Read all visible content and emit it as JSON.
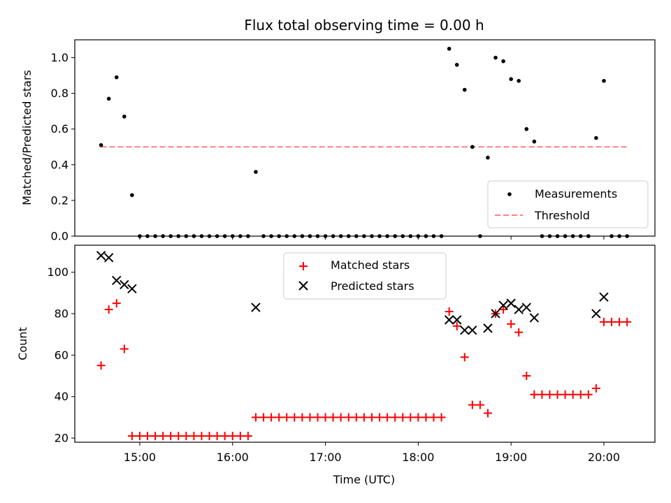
{
  "chart_data": [
    {
      "type": "scatter",
      "title": "Flux total observing time = 0.00 h",
      "xlabel": "",
      "ylabel": "Matched/Predicted stars",
      "xlim": [
        "14:18",
        "20:33"
      ],
      "ylim": [
        0,
        1.1
      ],
      "yticks": [
        0.0,
        0.2,
        0.4,
        0.6,
        0.8,
        1.0
      ],
      "ytick_labels": [
        "0.0",
        "0.2",
        "0.4",
        "0.6",
        "0.8",
        "1.0"
      ],
      "grid": false,
      "legend_position": "lower right",
      "series": [
        {
          "name": "Measurements",
          "marker": "dot",
          "color": "#000000",
          "x": [
            "14:35",
            "14:40",
            "14:45",
            "14:50",
            "14:55",
            "15:00",
            "15:05",
            "15:10",
            "15:15",
            "15:20",
            "15:25",
            "15:30",
            "15:35",
            "15:40",
            "15:45",
            "15:50",
            "15:55",
            "16:00",
            "16:05",
            "16:10",
            "16:15",
            "16:20",
            "16:25",
            "16:30",
            "16:35",
            "16:40",
            "16:45",
            "16:50",
            "16:55",
            "17:00",
            "17:05",
            "17:10",
            "17:15",
            "17:20",
            "17:25",
            "17:30",
            "17:35",
            "17:40",
            "17:45",
            "17:50",
            "17:55",
            "18:00",
            "18:05",
            "18:10",
            "18:15",
            "18:20",
            "18:25",
            "18:30",
            "18:35",
            "18:40",
            "18:45",
            "18:50",
            "18:55",
            "19:00",
            "19:05",
            "19:10",
            "19:15",
            "19:20",
            "19:25",
            "19:30",
            "19:35",
            "19:40",
            "19:45",
            "19:50",
            "19:55",
            "20:00",
            "20:05",
            "20:10",
            "20:15"
          ],
          "y": [
            0.51,
            0.77,
            0.89,
            0.67,
            0.23,
            0,
            0,
            0,
            0,
            0,
            0,
            0,
            0,
            0,
            0,
            0,
            0,
            0,
            0,
            0,
            0.36,
            0,
            0,
            0,
            0,
            0,
            0,
            0,
            0,
            0,
            0,
            0,
            0,
            0,
            0,
            0,
            0,
            0,
            0,
            0,
            0,
            0,
            0,
            0,
            0,
            1.05,
            0.96,
            0.82,
            0.5,
            0,
            0.44,
            1.0,
            0.98,
            0.88,
            0.87,
            0.6,
            0.53,
            0,
            0,
            0,
            0,
            0,
            0,
            0,
            0.55,
            0.87,
            0,
            0,
            0
          ]
        },
        {
          "name": "Threshold",
          "marker": "dashed-line",
          "color": "#ff8080",
          "x": [
            "14:35",
            "20:15"
          ],
          "y": [
            0.5,
            0.5
          ]
        }
      ]
    },
    {
      "type": "scatter",
      "title": "",
      "xlabel": "Time (UTC)",
      "ylabel": "Count",
      "xlim": [
        "14:18",
        "20:33"
      ],
      "ylim": [
        18,
        113
      ],
      "xticks": [
        "15:00",
        "16:00",
        "17:00",
        "18:00",
        "19:00",
        "20:00"
      ],
      "yticks": [
        20,
        40,
        60,
        80,
        100
      ],
      "ytick_labels": [
        "20",
        "40",
        "60",
        "80",
        "100"
      ],
      "grid": false,
      "legend_position": "upper center",
      "series": [
        {
          "name": "Matched stars",
          "marker": "plus",
          "color": "#ff0000",
          "x": [
            "14:35",
            "14:40",
            "14:45",
            "14:50",
            "14:55",
            "15:00",
            "15:05",
            "15:10",
            "15:15",
            "15:20",
            "15:25",
            "15:30",
            "15:35",
            "15:40",
            "15:45",
            "15:50",
            "15:55",
            "16:00",
            "16:05",
            "16:10",
            "16:15",
            "16:20",
            "16:25",
            "16:30",
            "16:35",
            "16:40",
            "16:45",
            "16:50",
            "16:55",
            "17:00",
            "17:05",
            "17:10",
            "17:15",
            "17:20",
            "17:25",
            "17:30",
            "17:35",
            "17:40",
            "17:45",
            "17:50",
            "17:55",
            "18:00",
            "18:05",
            "18:10",
            "18:15",
            "18:20",
            "18:25",
            "18:30",
            "18:35",
            "18:40",
            "18:45",
            "18:50",
            "18:55",
            "19:00",
            "19:05",
            "19:10",
            "19:15",
            "19:20",
            "19:25",
            "19:30",
            "19:35",
            "19:40",
            "19:45",
            "19:50",
            "19:55",
            "20:00",
            "20:05",
            "20:10",
            "20:15"
          ],
          "y": [
            55,
            82,
            85,
            63,
            21,
            21,
            21,
            21,
            21,
            21,
            21,
            21,
            21,
            21,
            21,
            21,
            21,
            21,
            21,
            21,
            30,
            30,
            30,
            30,
            30,
            30,
            30,
            30,
            30,
            30,
            30,
            30,
            30,
            30,
            30,
            30,
            30,
            30,
            30,
            30,
            30,
            30,
            30,
            30,
            30,
            81,
            74,
            59,
            36,
            36,
            32,
            80,
            82,
            75,
            71,
            50,
            41,
            41,
            41,
            41,
            41,
            41,
            41,
            41,
            44,
            76,
            76,
            76,
            76
          ]
        },
        {
          "name": "Predicted stars",
          "marker": "x",
          "color": "#000000",
          "x": [
            "14:35",
            "14:40",
            "14:45",
            "14:50",
            "14:55",
            "16:15",
            "18:20",
            "18:25",
            "18:30",
            "18:35",
            "18:45",
            "18:50",
            "18:55",
            "19:00",
            "19:05",
            "19:10",
            "19:15",
            "19:55",
            "20:00"
          ],
          "y": [
            108,
            107,
            96,
            94,
            92,
            83,
            77,
            77,
            72,
            72,
            73,
            80,
            84,
            85,
            82,
            83,
            78,
            80,
            88
          ]
        }
      ]
    }
  ]
}
